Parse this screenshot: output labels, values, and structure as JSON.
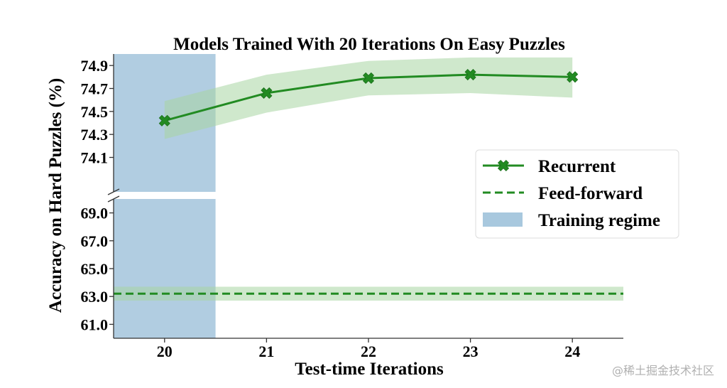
{
  "chart_data": {
    "type": "line",
    "title": "Models Trained With 20 Iterations On Easy Puzzles",
    "xlabel": "Test-time Iterations",
    "ylabel": "Accuracy on Hard Puzzles (%)",
    "x": [
      20,
      21,
      22,
      23,
      24
    ],
    "x_tick_labels": [
      "20",
      "21",
      "22",
      "23",
      "24"
    ],
    "xlim": [
      19.5,
      24.5
    ],
    "broken_y_axis": true,
    "upper_panel": {
      "ylim": [
        73.8,
        75.0
      ],
      "y_ticks": [
        74.1,
        74.3,
        74.5,
        74.7,
        74.9
      ],
      "y_tick_labels": [
        "74.1",
        "74.3",
        "74.5",
        "74.7",
        "74.9"
      ]
    },
    "lower_panel": {
      "ylim": [
        60.0,
        70.0
      ],
      "y_ticks": [
        61.0,
        63.0,
        65.0,
        67.0,
        69.0
      ],
      "y_tick_labels": [
        "61.0",
        "63.0",
        "65.0",
        "67.0",
        "69.0"
      ]
    },
    "series": [
      {
        "name": "Recurrent",
        "style": "solid line with x markers",
        "color": "#228b22",
        "values": [
          74.42,
          74.66,
          74.79,
          74.82,
          74.8
        ],
        "band_lower": [
          74.26,
          74.49,
          74.64,
          74.66,
          74.62
        ],
        "band_upper": [
          74.59,
          74.82,
          74.94,
          74.97,
          74.97
        ],
        "panel": "upper"
      },
      {
        "name": "Feed-forward",
        "style": "dashed line",
        "color": "#228b22",
        "x_range": [
          19.5,
          24.5
        ],
        "value": 63.2,
        "band": [
          62.7,
          63.7
        ],
        "panel": "lower"
      }
    ],
    "shaded_region": {
      "name": "Training regime",
      "color": "#a8c8de",
      "x_range": [
        19.5,
        20.5
      ]
    },
    "legend": {
      "position": "right-center",
      "entries": [
        "Recurrent",
        "Feed-forward",
        "Training regime"
      ]
    }
  },
  "watermark": "@稀土掘金技术社区"
}
